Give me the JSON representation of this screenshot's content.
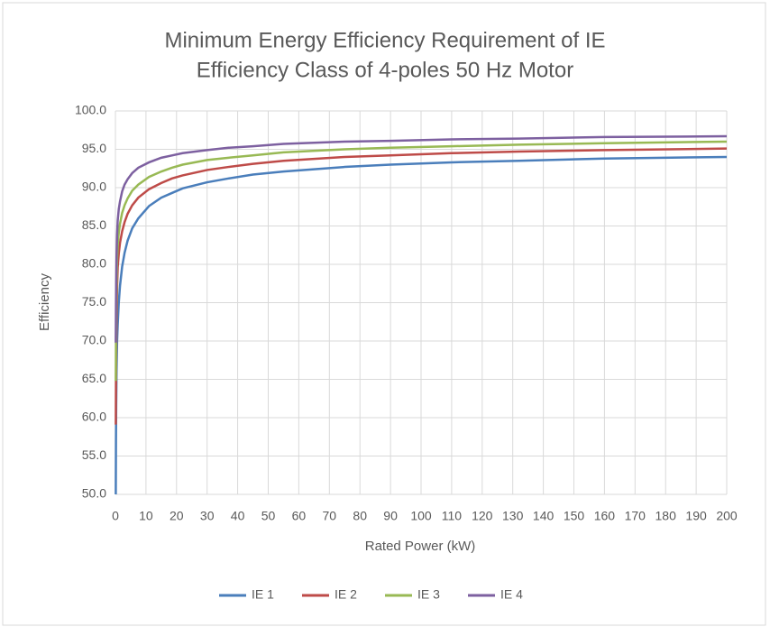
{
  "chart_data": {
    "type": "line",
    "title": [
      "Minimum Energy Efficiency Requirement of IE",
      "Efficiency Class of 4-poles 50 Hz Motor"
    ],
    "x_label": "Rated Power (kW)",
    "y_label": "Efficiency",
    "x": [
      0.12,
      0.18,
      0.25,
      0.37,
      0.55,
      0.75,
      1.1,
      1.5,
      2.2,
      3,
      4,
      5.5,
      7.5,
      11,
      15,
      18.5,
      22,
      30,
      37,
      45,
      55,
      75,
      90,
      110,
      132,
      160,
      200
    ],
    "series": [
      {
        "name": "IE 1",
        "color": "#4a7ebb",
        "values": [
          50.0,
          57.0,
          61.5,
          66.0,
          70.0,
          72.1,
          75.0,
          77.2,
          79.7,
          81.5,
          83.1,
          84.7,
          86.0,
          87.6,
          88.7,
          89.3,
          89.9,
          90.7,
          91.2,
          91.7,
          92.1,
          92.7,
          93.0,
          93.3,
          93.5,
          93.8,
          94.0
        ]
      },
      {
        "name": "IE 2",
        "color": "#be4b48",
        "values": [
          59.1,
          64.7,
          68.5,
          72.7,
          77.1,
          79.6,
          81.4,
          82.8,
          84.3,
          85.5,
          86.6,
          87.7,
          88.7,
          89.8,
          90.6,
          91.2,
          91.6,
          92.3,
          92.7,
          93.1,
          93.5,
          94.0,
          94.2,
          94.5,
          94.7,
          94.9,
          95.1
        ]
      },
      {
        "name": "IE 3",
        "color": "#98b954",
        "values": [
          64.8,
          69.9,
          73.5,
          77.3,
          80.8,
          82.5,
          84.1,
          85.3,
          86.7,
          87.7,
          88.6,
          89.6,
          90.4,
          91.4,
          92.1,
          92.6,
          93.0,
          93.6,
          93.9,
          94.2,
          94.6,
          95.0,
          95.2,
          95.4,
          95.6,
          95.8,
          96.0
        ]
      },
      {
        "name": "IE 4",
        "color": "#7d60a0",
        "values": [
          69.8,
          74.6,
          77.8,
          81.1,
          83.9,
          85.7,
          87.2,
          88.2,
          89.5,
          90.4,
          91.1,
          91.9,
          92.6,
          93.3,
          93.9,
          94.2,
          94.5,
          94.9,
          95.2,
          95.4,
          95.7,
          96.0,
          96.1,
          96.3,
          96.4,
          96.6,
          96.7
        ]
      }
    ],
    "xlim": [
      0,
      200
    ],
    "xticks": [
      0,
      10,
      20,
      30,
      40,
      50,
      60,
      70,
      80,
      90,
      100,
      110,
      120,
      130,
      140,
      150,
      160,
      170,
      180,
      190,
      200
    ],
    "ylim": [
      50,
      100
    ],
    "yticks": [
      {
        "value": 50,
        "label": "50.0"
      },
      {
        "value": 55,
        "label": "55.0"
      },
      {
        "value": 60,
        "label": "60.0"
      },
      {
        "value": 65,
        "label": "65.0"
      },
      {
        "value": 70,
        "label": "70.0"
      },
      {
        "value": 75,
        "label": "75.0"
      },
      {
        "value": 80,
        "label": "80.0"
      },
      {
        "value": 85,
        "label": "85.0"
      },
      {
        "value": 90,
        "label": "90.0"
      },
      {
        "value": 95,
        "label": "95.0"
      },
      {
        "value": 100,
        "label": "100.0"
      }
    ],
    "grid": true,
    "legend": "bottom"
  }
}
